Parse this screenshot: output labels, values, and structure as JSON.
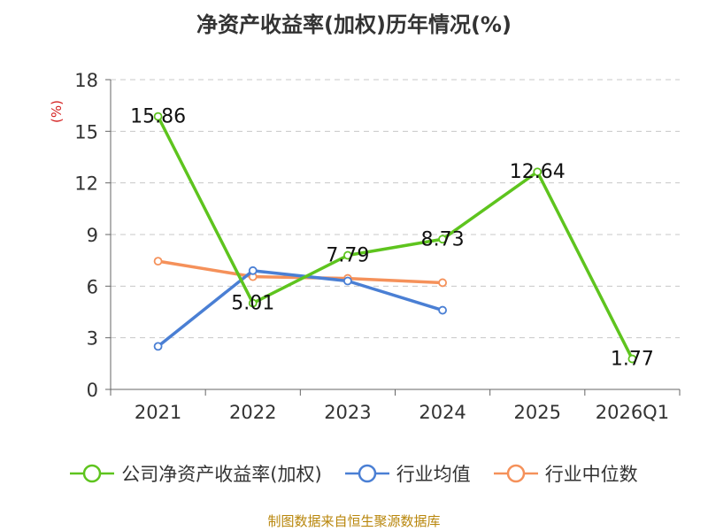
{
  "title": "净资产收益率(加权)历年情况(%)",
  "source": "制图数据来自恒生聚源数据库",
  "chart_data": {
    "type": "line",
    "categories": [
      "2021",
      "2022",
      "2023",
      "2024",
      "2025",
      "2026Q1"
    ],
    "ylabel": "(%)",
    "ylim": [
      0,
      18
    ],
    "yticks": [
      0,
      3,
      6,
      9,
      12,
      15,
      18
    ],
    "grid": true,
    "legend_position": "bottom",
    "series": [
      {
        "name": "公司净资产收益率(加权)",
        "color": "#5ec41e",
        "values": [
          15.86,
          5.01,
          7.79,
          8.73,
          12.64,
          1.77
        ],
        "labels": [
          "15.86",
          "5.01",
          "7.79",
          "8.73",
          "12.64",
          "1.77"
        ]
      },
      {
        "name": "行业均值",
        "color": "#4a7fd4",
        "values": [
          2.5,
          6.9,
          6.3,
          4.6,
          null,
          null
        ]
      },
      {
        "name": "行业中位数",
        "color": "#f5915a",
        "values": [
          7.45,
          6.55,
          6.45,
          6.2,
          null,
          null
        ]
      }
    ]
  }
}
